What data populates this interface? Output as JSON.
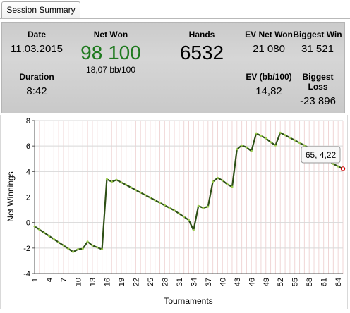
{
  "tab": {
    "label": "Session Summary"
  },
  "summary": {
    "date_label": "Date",
    "date_value": "11.03.2015",
    "duration_label": "Duration",
    "duration_value": "8:42",
    "net_won_label": "Net Won",
    "net_won_value": "98 100",
    "net_won_sub": "18,07 bb/100",
    "hands_label": "Hands",
    "hands_value": "6532",
    "ev_net_won_label": "EV Net Won",
    "ev_net_won_value": "21 080",
    "ev_bb_label": "EV (bb/100)",
    "ev_bb_value": "14,82",
    "biggest_win_label": "Biggest Win",
    "biggest_win_value": "31 521",
    "biggest_loss_label": "Biggest Loss",
    "biggest_loss_value": "-23 896"
  },
  "tooltip": {
    "text": "65, 4,22"
  },
  "colors": {
    "line": "#2d4f15",
    "marker": "#9acb4c",
    "net_won": "#1f7a1f",
    "endpoint": "#cc0000"
  },
  "chart_data": {
    "type": "line",
    "xlabel": "Tournaments",
    "ylabel": "Net Winnings",
    "xlim": [
      1,
      65
    ],
    "ylim": [
      -4,
      8
    ],
    "x_ticks": [
      1,
      4,
      7,
      10,
      13,
      16,
      19,
      22,
      25,
      28,
      31,
      34,
      37,
      40,
      43,
      46,
      49,
      52,
      55,
      58,
      61,
      64
    ],
    "y_ticks": [
      -4,
      -2,
      0,
      2,
      4,
      6,
      8
    ],
    "grid": true,
    "series": [
      {
        "x": [
          1,
          2,
          3,
          4,
          5,
          6,
          7,
          8,
          9,
          10,
          11,
          12,
          13,
          14,
          15,
          16,
          17,
          18,
          19,
          20,
          21,
          22,
          23,
          24,
          25,
          26,
          27,
          28,
          29,
          30,
          31,
          32,
          33,
          34,
          35,
          36,
          37,
          38,
          39,
          40,
          41,
          42,
          43,
          44,
          45,
          46,
          47,
          48,
          49,
          50,
          51,
          52,
          53,
          54,
          55,
          56,
          57,
          58,
          59,
          60,
          61,
          62,
          63,
          64,
          65
        ],
        "y": [
          -0.3,
          -0.55,
          -0.8,
          -1.05,
          -1.3,
          -1.55,
          -1.8,
          -2.05,
          -2.3,
          -2.1,
          -2.05,
          -1.5,
          -1.8,
          -1.95,
          -2.1,
          3.4,
          3.2,
          3.35,
          3.15,
          2.95,
          2.75,
          2.55,
          2.35,
          2.15,
          1.95,
          1.75,
          1.55,
          1.35,
          1.15,
          0.95,
          0.7,
          0.45,
          0.2,
          -0.6,
          1.3,
          1.15,
          1.25,
          3.2,
          3.5,
          3.3,
          3.0,
          2.8,
          5.75,
          6.05,
          5.9,
          5.6,
          7.0,
          6.8,
          6.6,
          6.3,
          6.05,
          7.05,
          6.85,
          6.65,
          6.45,
          6.25,
          6.05,
          5.85,
          5.6,
          5.35,
          5.1,
          4.85,
          4.6,
          4.4,
          4.22
        ]
      }
    ]
  }
}
